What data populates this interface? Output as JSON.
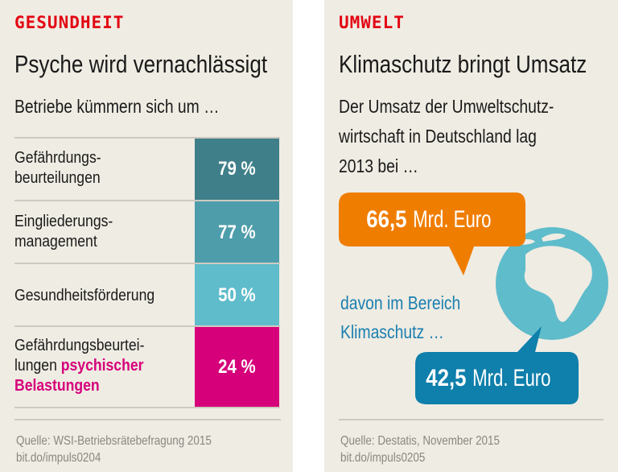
{
  "colors": {
    "background": "#efece3",
    "kicker": "#e30613",
    "row1": "#3f7f8a",
    "row2": "#4e9dab",
    "row3": "#5fbccb",
    "row4": "#d6007b",
    "orange": "#ef7d00",
    "blue": "#0f7fab",
    "globe": "#5fbccb"
  },
  "left": {
    "kicker": "GESUNDHEIT",
    "title": "Psyche wird vernachlässigt",
    "subtitle": "Betriebe kümmern sich um …",
    "rows": [
      {
        "label_line1": "Gefährdungs-",
        "label_line2": "beurteilungen",
        "value": "79 %"
      },
      {
        "label_line1": "Eingliederungs-",
        "label_line2": "management",
        "value": "77 %"
      },
      {
        "label_line1": "Gesundheitsförderung",
        "value": "50 %"
      },
      {
        "label_line1": "Gefährdungsbeurtei-",
        "label_line2": "lungen ",
        "label_highlight1": "psychischer",
        "label_highlight2": "Belastungen",
        "value": "24 %"
      }
    ],
    "source": "Quelle: WSI-Betriebsrätebefragung 2015",
    "link": "bit.do/impuls0204"
  },
  "right": {
    "kicker": "UMWELT",
    "title": "Klimaschutz bringt Umsatz",
    "text_line1": "Der Umsatz der Umweltschutz-",
    "text_line2": "wirtschaft in Deutschland lag",
    "text_line3": "2013 bei …",
    "bubble1_number": "66,5",
    "bubble1_unit": " Mrd. Euro",
    "middle_line1": "davon im Bereich",
    "middle_line2": "Klimaschutz …",
    "bubble2_number": "42,5",
    "bubble2_unit": " Mrd. Euro",
    "globe_icon": "globe-icon",
    "source": "Quelle: Destatis, November 2015",
    "link": "bit.do/impuls0205"
  }
}
